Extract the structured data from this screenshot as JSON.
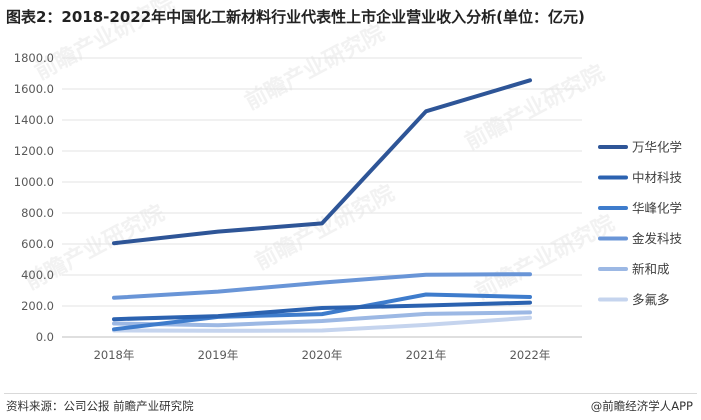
{
  "title": "图表2：2018-2022年中国化工新材料行业代表性上市企业营业收入分析(单位：亿元)",
  "footer": {
    "source": "资料来源：公司公报 前瞻产业研究院",
    "brand": "@前瞻经济学人APP"
  },
  "watermark": "前瞻产业研究院",
  "chart_data": {
    "type": "line",
    "categories": [
      "2018年",
      "2019年",
      "2020年",
      "2021年",
      "2022年"
    ],
    "ylim": [
      0,
      1800
    ],
    "yticks": [
      "0.0",
      "200.0",
      "400.0",
      "600.0",
      "800.0",
      "1000.0",
      "1200.0",
      "1400.0",
      "1600.0",
      "1800.0"
    ],
    "grid": true,
    "legend_position": "right",
    "series": [
      {
        "name": "万华化学",
        "color": "#2e5597",
        "values": [
          605,
          680,
          733,
          1456,
          1656
        ]
      },
      {
        "name": "中材科技",
        "color": "#2b62b0",
        "values": [
          115,
          135,
          187,
          203,
          222
        ]
      },
      {
        "name": "华峰化学",
        "color": "#3e7ccc",
        "values": [
          50,
          130,
          148,
          274,
          258
        ]
      },
      {
        "name": "金发科技",
        "color": "#6995d7",
        "values": [
          253,
          293,
          351,
          402,
          405
        ]
      },
      {
        "name": "新和成",
        "color": "#9cb8e4",
        "values": [
          87,
          76,
          103,
          149,
          159
        ]
      },
      {
        "name": "多氟多",
        "color": "#c5d4ee",
        "values": [
          42,
          40,
          42,
          78,
          124
        ]
      }
    ]
  }
}
